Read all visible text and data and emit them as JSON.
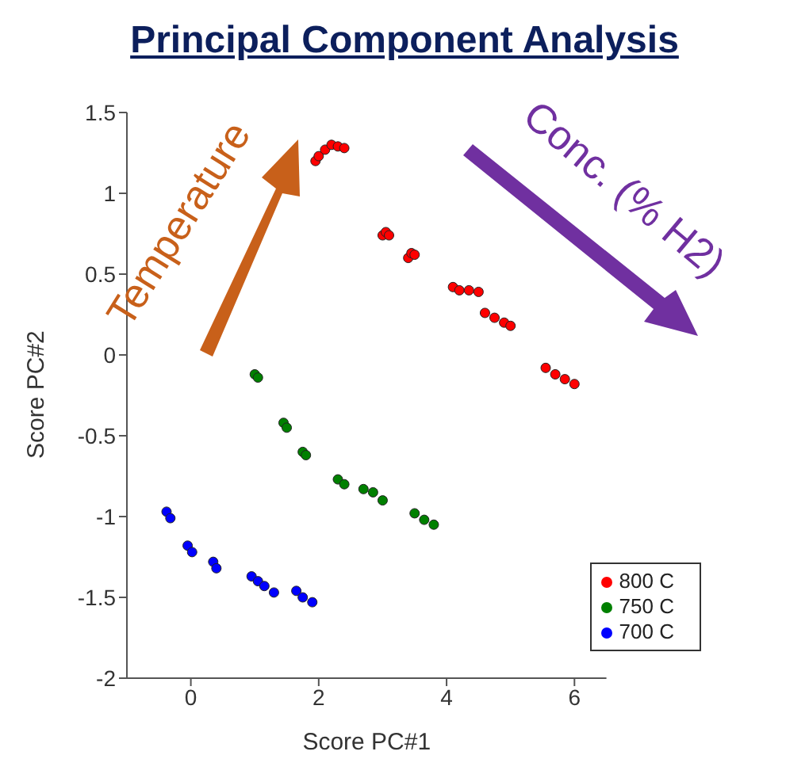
{
  "chart_data": {
    "type": "scatter",
    "title": "Principal Component Analysis",
    "xlabel": "Score PC#1",
    "ylabel": "Score PC#2",
    "annotations": [
      "Temperature",
      "Conc. (% H2)"
    ],
    "xlim": [
      -1,
      6.5
    ],
    "xticks": [
      0,
      2,
      4,
      6
    ],
    "ylim": [
      -2,
      1.5
    ],
    "yticks": [
      -2,
      -1.5,
      -1,
      -0.5,
      0,
      0.5,
      1,
      1.5
    ],
    "grid": false,
    "legend": "bottom right",
    "marker": "circle",
    "series": [
      {
        "name": "800 C",
        "color": "#ff0000",
        "x": [
          1.95,
          2.0,
          2.1,
          2.2,
          2.3,
          2.4,
          3.0,
          3.05,
          3.1,
          3.4,
          3.45,
          3.5,
          4.1,
          4.2,
          4.35,
          4.5,
          4.6,
          4.75,
          4.9,
          5.0,
          5.55,
          5.7,
          5.85,
          6.0
        ],
        "values": [
          1.2,
          1.23,
          1.27,
          1.3,
          1.29,
          1.28,
          0.74,
          0.76,
          0.74,
          0.6,
          0.63,
          0.62,
          0.42,
          0.4,
          0.4,
          0.39,
          0.26,
          0.23,
          0.2,
          0.18,
          -0.08,
          -0.12,
          -0.15,
          -0.18
        ]
      },
      {
        "name": "750 C",
        "color": "#008000",
        "x": [
          1.0,
          1.05,
          1.45,
          1.5,
          1.75,
          1.8,
          2.3,
          2.4,
          2.7,
          2.85,
          3.0,
          3.5,
          3.65,
          3.8
        ],
        "values": [
          -0.12,
          -0.14,
          -0.42,
          -0.45,
          -0.6,
          -0.62,
          -0.77,
          -0.8,
          -0.83,
          -0.85,
          -0.9,
          -0.98,
          -1.02,
          -1.05
        ]
      },
      {
        "name": "700 C",
        "color": "#0000ff",
        "x": [
          -0.38,
          -0.32,
          -0.05,
          0.02,
          0.35,
          0.4,
          0.95,
          1.05,
          1.15,
          1.3,
          1.65,
          1.75,
          1.9
        ],
        "values": [
          -0.97,
          -1.01,
          -1.18,
          -1.22,
          -1.28,
          -1.32,
          -1.37,
          -1.4,
          -1.43,
          -1.47,
          -1.46,
          -1.5,
          -1.53
        ]
      }
    ]
  }
}
